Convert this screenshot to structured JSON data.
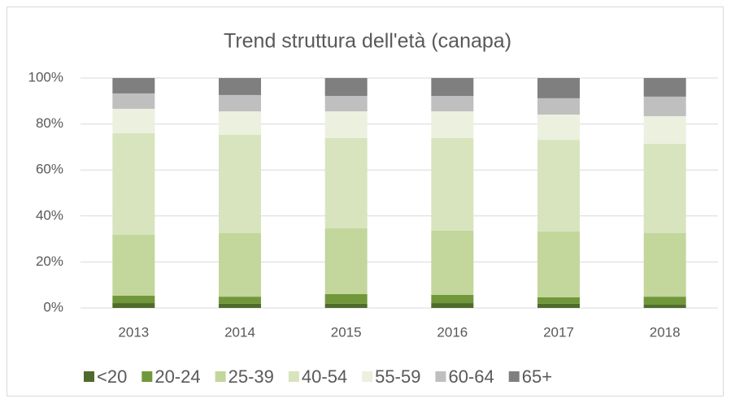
{
  "chart_data": {
    "type": "stacked_bar",
    "title": "Trend struttura dell'età (canapa)",
    "categories": [
      "2013",
      "2014",
      "2015",
      "2016",
      "2017",
      "2018"
    ],
    "series": [
      {
        "name": "<20",
        "color": "#4f6b2b",
        "values": [
          2.1,
          1.8,
          1.8,
          2.1,
          1.8,
          1.4
        ]
      },
      {
        "name": "20-24",
        "color": "#71973b",
        "values": [
          3.2,
          3.1,
          4.2,
          3.6,
          2.8,
          3.5
        ]
      },
      {
        "name": "25-39",
        "color": "#c3d69b",
        "values": [
          26.5,
          27.6,
          28.6,
          27.9,
          28.6,
          27.6
        ]
      },
      {
        "name": "40-54",
        "color": "#d8e4bd",
        "values": [
          44.2,
          42.8,
          39.3,
          40.3,
          39.9,
          38.9
        ]
      },
      {
        "name": "55-59",
        "color": "#ebf1de",
        "values": [
          10.6,
          10.2,
          11.6,
          11.6,
          11.0,
          12.0
        ]
      },
      {
        "name": "60-64",
        "color": "#bfbfbf",
        "values": [
          6.7,
          7.1,
          6.7,
          6.7,
          7.1,
          8.5
        ]
      },
      {
        "name": "65+",
        "color": "#7f7f7f",
        "values": [
          6.7,
          7.4,
          7.8,
          7.8,
          8.8,
          8.1
        ]
      }
    ],
    "ylim": [
      0,
      100
    ],
    "yticks": [
      {
        "value": 0,
        "label": "0%"
      },
      {
        "value": 20,
        "label": "20%"
      },
      {
        "value": 40,
        "label": "40%"
      },
      {
        "value": 60,
        "label": "60%"
      },
      {
        "value": 80,
        "label": "80%"
      },
      {
        "value": 100,
        "label": "100%"
      }
    ],
    "grid": true,
    "legend": "bottom"
  }
}
